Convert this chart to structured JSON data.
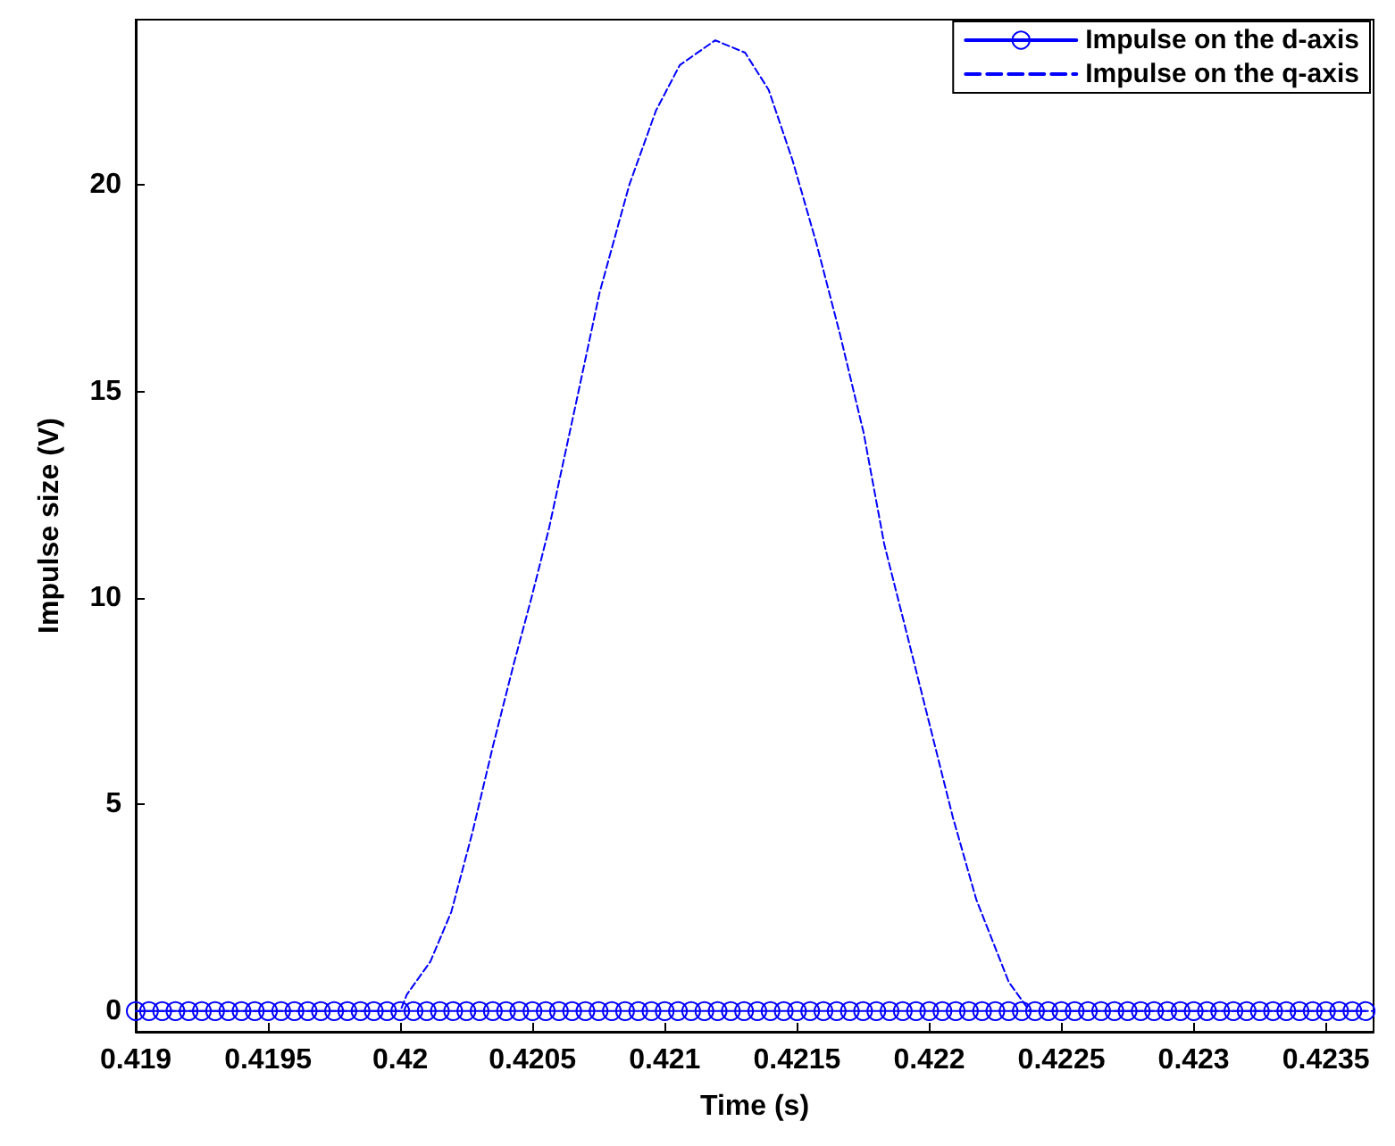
{
  "chart_data": {
    "type": "line",
    "xlabel": "Time (s)",
    "ylabel": "Impulse size (V)",
    "xlim": [
      0.419,
      0.42368
    ],
    "xticks": [
      0.419,
      0.4195,
      0.42,
      0.4205,
      0.421,
      0.4215,
      0.422,
      0.4225,
      0.423,
      0.4235
    ],
    "ylim": [
      -0.5,
      24
    ],
    "yticks": [
      0,
      5,
      10,
      15,
      20
    ],
    "grid": false,
    "legend": "top right",
    "series": [
      {
        "name": "Impulse on the d-axis",
        "color": "#0000ff",
        "marker": "circle",
        "line_style": "solid",
        "x": [
          0.419,
          0.41905,
          0.4191,
          0.41915,
          0.4192,
          0.41925,
          0.4193,
          0.41935,
          0.4194,
          0.41945,
          0.4195,
          0.41955,
          0.4196,
          0.41965,
          0.4197,
          0.41975,
          0.4198,
          0.41985,
          0.4199,
          0.41995,
          0.42,
          0.42005,
          0.4201,
          0.42015,
          0.4202,
          0.42025,
          0.4203,
          0.42035,
          0.4204,
          0.42045,
          0.4205,
          0.42055,
          0.4206,
          0.42065,
          0.4207,
          0.42075,
          0.4208,
          0.42085,
          0.4209,
          0.42095,
          0.421,
          0.42105,
          0.4211,
          0.42115,
          0.4212,
          0.42125,
          0.4213,
          0.42135,
          0.4214,
          0.42145,
          0.4215,
          0.42155,
          0.4216,
          0.42165,
          0.4217,
          0.42175,
          0.4218,
          0.42185,
          0.4219,
          0.42195,
          0.422,
          0.42205,
          0.4221,
          0.42215,
          0.4222,
          0.42225,
          0.4223,
          0.42235,
          0.4224,
          0.42245,
          0.4225,
          0.42255,
          0.4226,
          0.42265,
          0.4227,
          0.42275,
          0.4228,
          0.42285,
          0.4229,
          0.42295,
          0.423,
          0.42305,
          0.4231,
          0.42315,
          0.4232,
          0.42325,
          0.4233,
          0.42335,
          0.4234,
          0.42345,
          0.4235,
          0.42355,
          0.4236,
          0.42365
        ],
        "values": [
          0,
          0,
          0,
          0,
          0,
          0,
          0,
          0,
          0,
          0,
          0,
          0,
          0,
          0,
          0,
          0,
          0,
          0,
          0,
          0,
          0,
          0,
          0,
          0,
          0,
          0,
          0,
          0,
          0,
          0,
          0,
          0,
          0,
          0,
          0,
          0,
          0,
          0,
          0,
          0,
          0,
          0,
          0,
          0,
          0,
          0,
          0,
          0,
          0,
          0,
          0,
          0,
          0,
          0,
          0,
          0,
          0,
          0,
          0,
          0,
          0,
          0,
          0,
          0,
          0,
          0,
          0,
          0,
          0,
          0,
          0,
          0,
          0,
          0,
          0,
          0,
          0,
          0,
          0,
          0,
          0,
          0,
          0,
          0,
          0,
          0,
          0,
          0,
          0,
          0,
          0,
          0,
          0,
          0
        ]
      },
      {
        "name": "Impulse on the q-axis",
        "color": "#0000ff",
        "marker": "none",
        "line_style": "dashed",
        "x": [
          0.419,
          0.42,
          0.420025,
          0.420114,
          0.420193,
          0.420272,
          0.42035,
          0.420429,
          0.420496,
          0.420563,
          0.420664,
          0.420754,
          0.420866,
          0.420967,
          0.421057,
          0.421191,
          0.421304,
          0.421393,
          0.421483,
          0.421573,
          0.421662,
          0.421752,
          0.42183,
          0.421909,
          0.421999,
          0.422089,
          0.422178,
          0.422301,
          0.42238,
          0.42368
        ],
        "values": [
          0,
          0,
          0.4,
          1.2,
          2.4,
          4.3,
          6.4,
          8.4,
          10,
          11.7,
          14.7,
          17.4,
          20,
          21.8,
          22.9,
          23.5,
          23.2,
          22.3,
          20.6,
          18.6,
          16.4,
          14,
          11.3,
          9.3,
          7,
          4.7,
          2.7,
          0.7,
          0,
          0
        ]
      }
    ]
  }
}
